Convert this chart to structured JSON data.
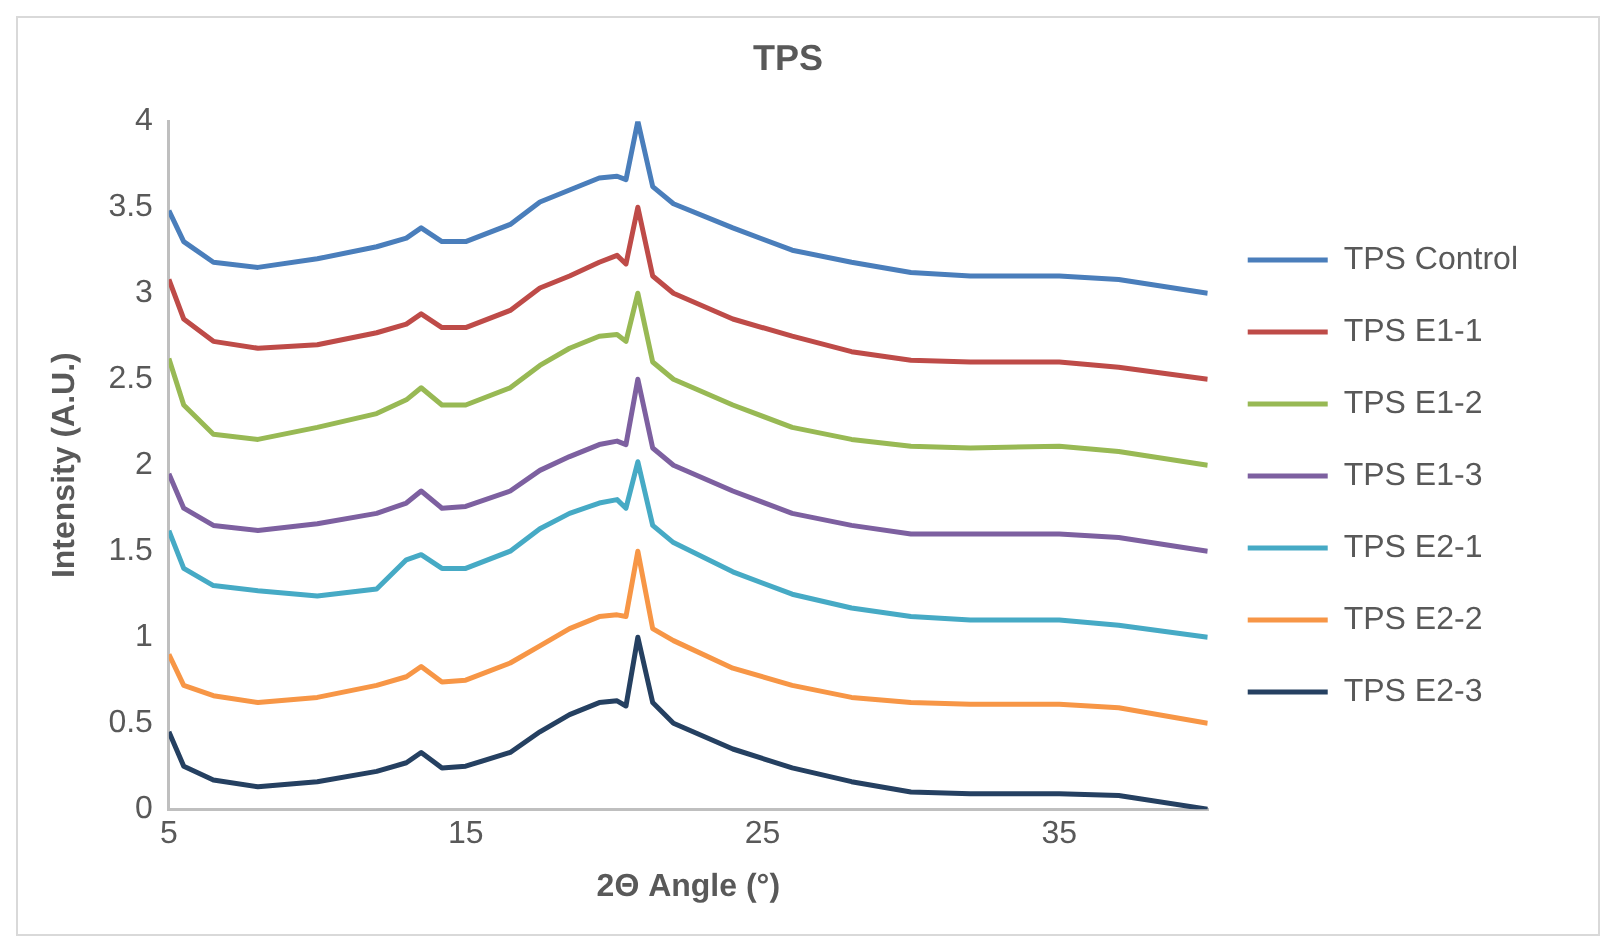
{
  "chart_data": {
    "type": "line",
    "title": "TPS",
    "xlabel": "2Θ Angle (°)",
    "ylabel": "Intensity (A.U.)",
    "x": [
      5,
      5.5,
      6.5,
      8,
      10,
      12,
      13,
      13.5,
      14.2,
      15,
      16.5,
      17.5,
      18.5,
      19.5,
      20.1,
      20.4,
      20.8,
      21.3,
      22,
      24,
      26,
      28,
      30,
      32,
      35,
      37,
      40
    ],
    "xlim": [
      5,
      40
    ],
    "xticks": [
      5,
      15,
      25,
      35
    ],
    "ylim": [
      0,
      4
    ],
    "yticks": [
      0,
      0.5,
      1,
      1.5,
      2,
      2.5,
      3,
      3.5,
      4
    ],
    "grid": false,
    "legend": "right",
    "marker": "none",
    "line_style": "solid",
    "series": [
      {
        "name": "TPS Control",
        "color": "#4a7ebb",
        "values": [
          3.48,
          3.3,
          3.18,
          3.15,
          3.2,
          3.27,
          3.32,
          3.38,
          3.3,
          3.3,
          3.4,
          3.53,
          3.6,
          3.67,
          3.68,
          3.66,
          4.0,
          3.62,
          3.52,
          3.38,
          3.25,
          3.18,
          3.12,
          3.1,
          3.1,
          3.08,
          3.0
        ]
      },
      {
        "name": "TPS E1-1",
        "color": "#be4b48",
        "values": [
          3.08,
          2.85,
          2.72,
          2.68,
          2.7,
          2.77,
          2.82,
          2.88,
          2.8,
          2.8,
          2.9,
          3.03,
          3.1,
          3.18,
          3.22,
          3.17,
          3.5,
          3.1,
          3.0,
          2.85,
          2.75,
          2.66,
          2.61,
          2.6,
          2.6,
          2.57,
          2.5
        ]
      },
      {
        "name": "TPS E1-2",
        "color": "#98b954",
        "values": [
          2.62,
          2.35,
          2.18,
          2.15,
          2.22,
          2.3,
          2.38,
          2.45,
          2.35,
          2.35,
          2.45,
          2.58,
          2.68,
          2.75,
          2.76,
          2.72,
          3.0,
          2.6,
          2.5,
          2.35,
          2.22,
          2.15,
          2.11,
          2.1,
          2.11,
          2.08,
          2.0
        ]
      },
      {
        "name": "TPS E1-3",
        "color": "#7d60a0",
        "values": [
          1.95,
          1.75,
          1.65,
          1.62,
          1.66,
          1.72,
          1.78,
          1.85,
          1.75,
          1.76,
          1.85,
          1.97,
          2.05,
          2.12,
          2.14,
          2.12,
          2.5,
          2.1,
          2.0,
          1.85,
          1.72,
          1.65,
          1.6,
          1.6,
          1.6,
          1.58,
          1.5
        ]
      },
      {
        "name": "TPS E2-1",
        "color": "#46aac5",
        "values": [
          1.62,
          1.4,
          1.3,
          1.27,
          1.24,
          1.28,
          1.45,
          1.48,
          1.4,
          1.4,
          1.5,
          1.63,
          1.72,
          1.78,
          1.8,
          1.75,
          2.02,
          1.65,
          1.55,
          1.38,
          1.25,
          1.17,
          1.12,
          1.1,
          1.1,
          1.07,
          1.0
        ]
      },
      {
        "name": "TPS E2-2",
        "color": "#f79646",
        "values": [
          0.9,
          0.72,
          0.66,
          0.62,
          0.65,
          0.72,
          0.77,
          0.83,
          0.74,
          0.75,
          0.85,
          0.95,
          1.05,
          1.12,
          1.13,
          1.12,
          1.5,
          1.05,
          0.98,
          0.82,
          0.72,
          0.65,
          0.62,
          0.61,
          0.61,
          0.59,
          0.5
        ]
      },
      {
        "name": "TPS E2-3",
        "color": "#254061",
        "values": [
          0.45,
          0.25,
          0.17,
          0.13,
          0.16,
          0.22,
          0.27,
          0.33,
          0.24,
          0.25,
          0.33,
          0.45,
          0.55,
          0.62,
          0.63,
          0.6,
          1.0,
          0.62,
          0.5,
          0.35,
          0.24,
          0.16,
          0.1,
          0.09,
          0.09,
          0.08,
          0.0
        ]
      }
    ]
  }
}
